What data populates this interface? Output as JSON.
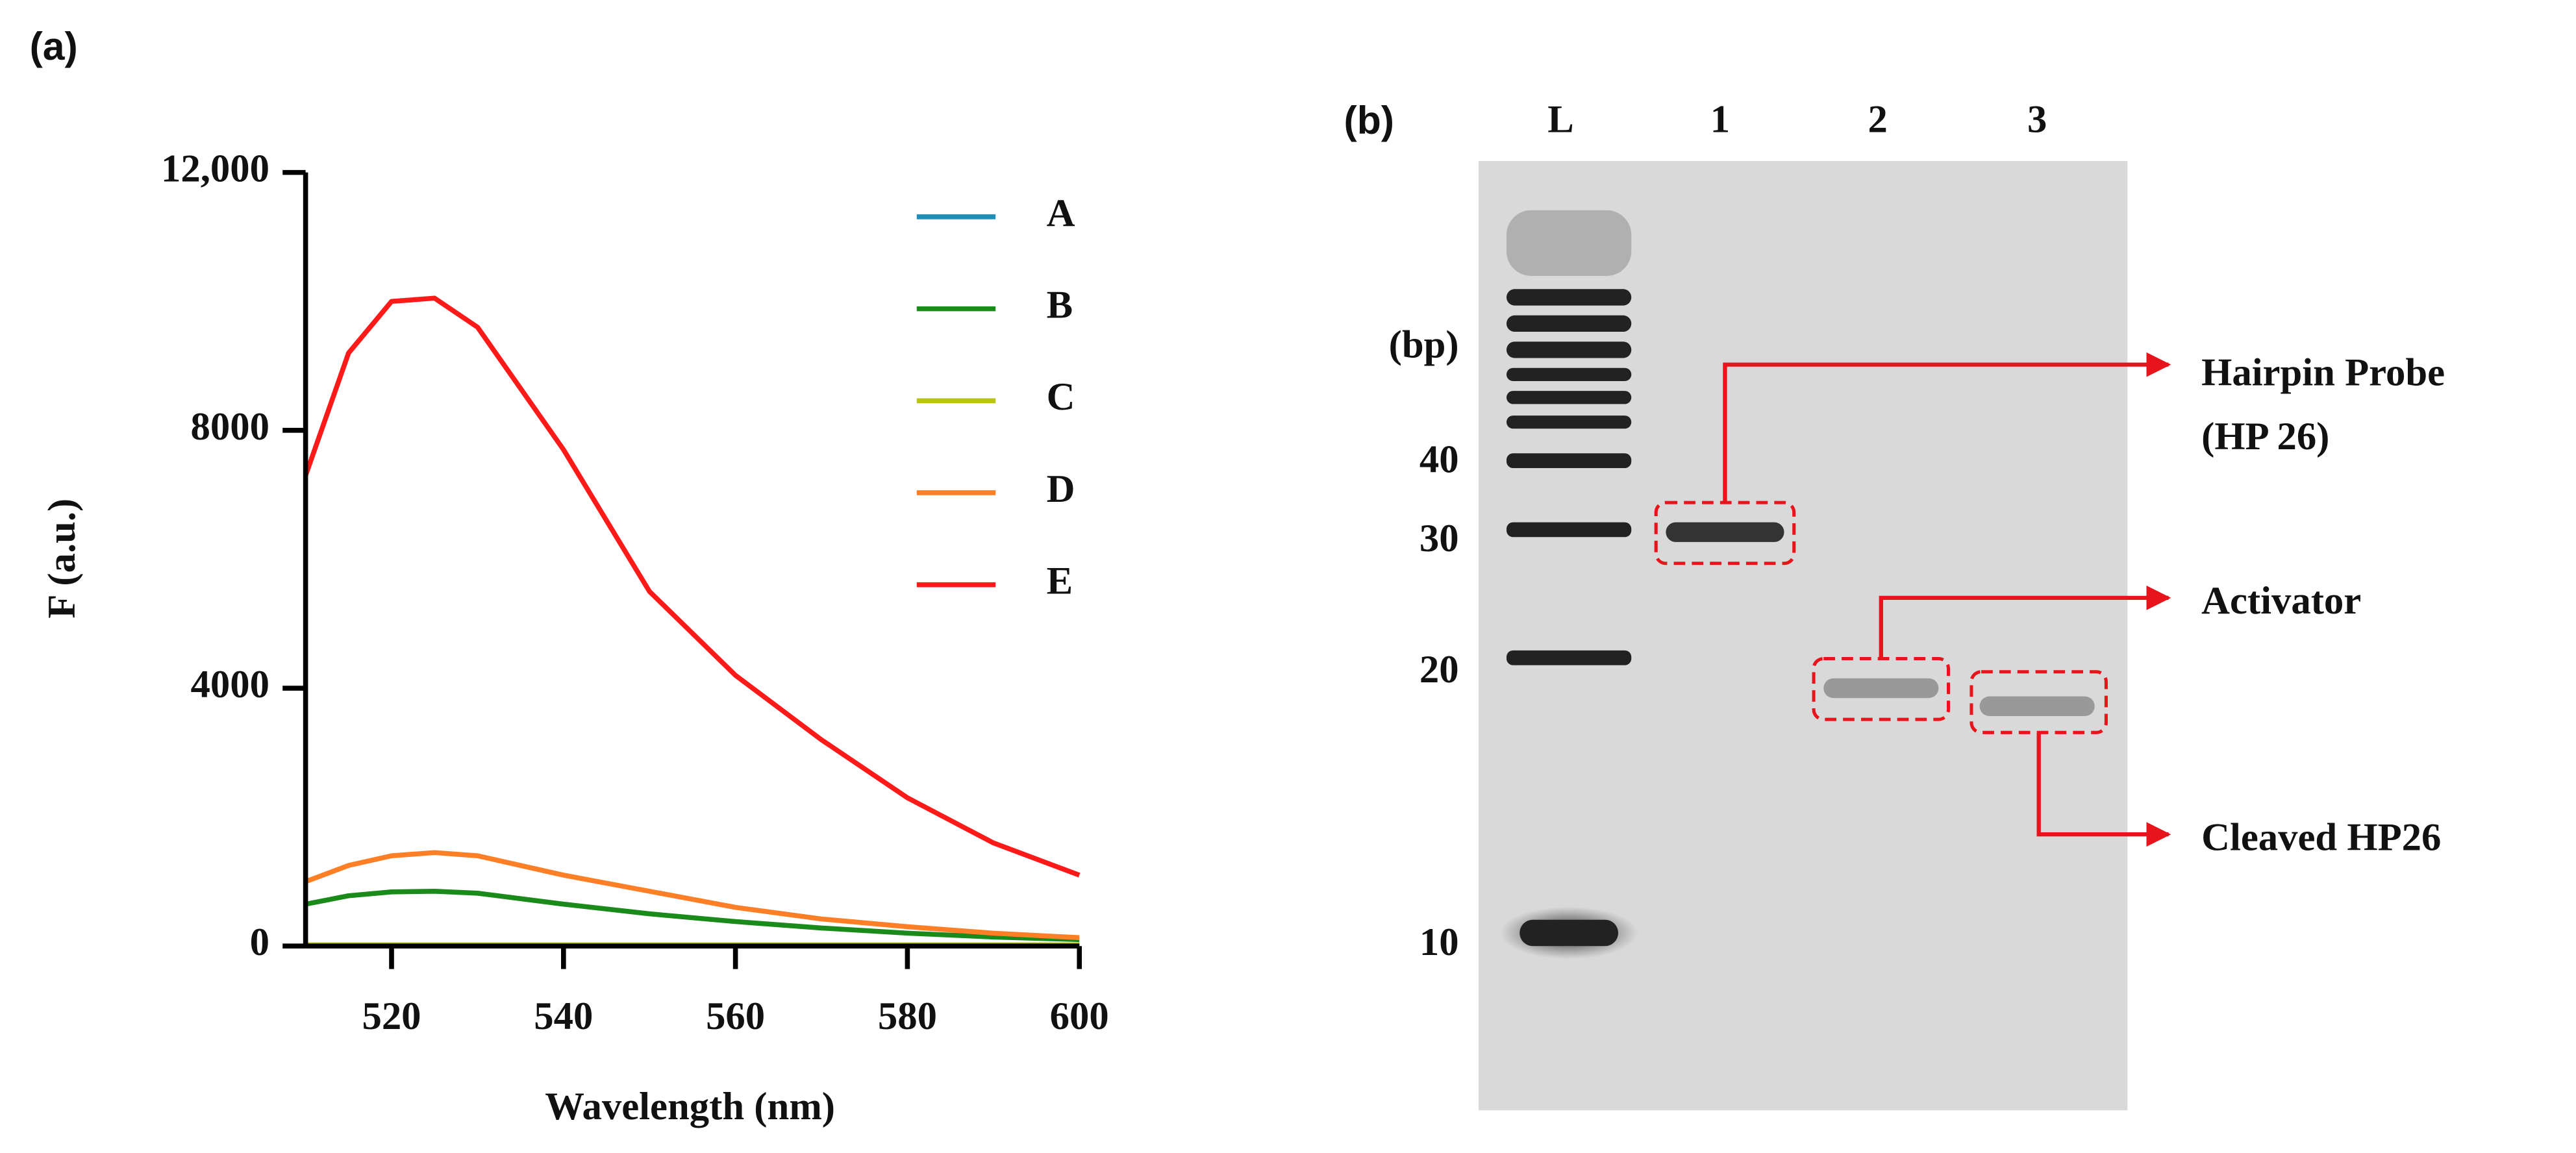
{
  "chart_data": {
    "type": "line",
    "title": "(a)",
    "x_label": "Wavelength  (nm)",
    "y_label": "F (a.u.)",
    "x": [
      510,
      515,
      520,
      525,
      530,
      540,
      550,
      560,
      570,
      580,
      590,
      600
    ],
    "series": [
      {
        "name": "A",
        "color": "#1f8fb8",
        "values": [
          10,
          10,
          10,
          10,
          10,
          10,
          10,
          10,
          10,
          10,
          10,
          10
        ]
      },
      {
        "name": "B",
        "color": "#1a8a1a",
        "values": [
          650,
          780,
          840,
          850,
          820,
          650,
          500,
          380,
          280,
          200,
          140,
          100
        ]
      },
      {
        "name": "C",
        "color": "#b8c41a",
        "values": [
          20,
          20,
          20,
          20,
          20,
          20,
          20,
          20,
          20,
          20,
          20,
          20
        ]
      },
      {
        "name": "D",
        "color": "#ff7f27",
        "values": [
          1000,
          1250,
          1400,
          1450,
          1400,
          1100,
          850,
          600,
          420,
          300,
          200,
          130
        ]
      },
      {
        "name": "E",
        "color": "#ff1a1a",
        "values": [
          7300,
          9200,
          10000,
          10050,
          9600,
          7700,
          5500,
          4200,
          3200,
          2300,
          1600,
          1100
        ]
      }
    ],
    "xlim": [
      510,
      600
    ],
    "xticks": [
      520,
      540,
      560,
      580,
      600
    ],
    "ylim": [
      0,
      12000
    ],
    "yticks": [
      0,
      4000,
      8000,
      {
        "value": 12000,
        "label": "12,000"
      }
    ],
    "legend": "upper right"
  },
  "gel": {
    "panel_label": "(b)",
    "lanes": [
      "L",
      "1",
      "2",
      "3"
    ],
    "unit": "(bp)",
    "sizes": [
      40,
      30,
      20,
      10
    ],
    "annotations": [
      "Hairpin Probe",
      "(HP 26)",
      "Activator",
      "Cleaved HP26"
    ]
  }
}
